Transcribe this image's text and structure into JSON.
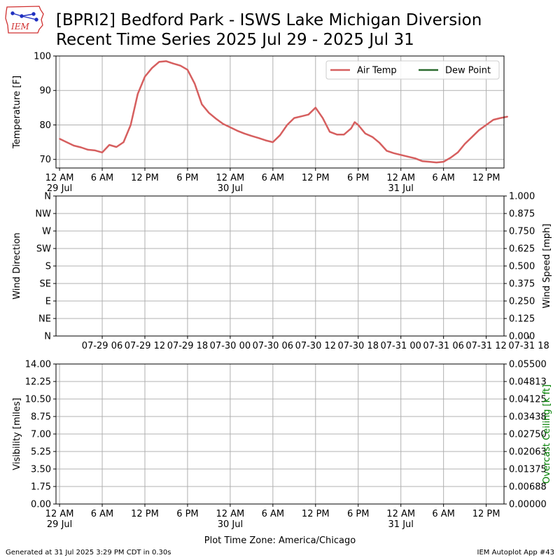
{
  "header": {
    "title_line1": "[BPRI2] Bedford Park - ISWS Lake Michigan Diversion",
    "title_line2": "Recent Time Series 2025 Jul 29 - 2025 Jul 31",
    "logo_text": "IEM"
  },
  "footer": {
    "generated": "Generated at 31 Jul 2025 3:29 PM CDT in 0.30s",
    "app": "IEM Autoplot App #43"
  },
  "colors": {
    "air_temp": "#d65f5f",
    "dew_point": "#2c6b2f",
    "ceiling_label": "#008000",
    "grid": "#b0b0b0",
    "logo_red": "#d03030",
    "logo_blue": "#2030c0"
  },
  "chart_data": [
    {
      "id": "temperature",
      "type": "line",
      "ylabel": "Temperature [F]",
      "xlabel": "",
      "ylim": [
        67.5,
        100
      ],
      "yticks": [
        70,
        80,
        90,
        100
      ],
      "xlim_hours_from_jul29_midnight": [
        -0.5,
        62.5
      ],
      "xtick_hours_from_jul29_midnight": [
        0,
        6,
        12,
        18,
        24,
        30,
        36,
        42,
        48,
        54,
        60
      ],
      "xtick_labels": [
        "12 AM",
        "6 AM",
        "12 PM",
        "6 PM",
        "12 AM",
        "6 AM",
        "12 PM",
        "6 PM",
        "12 AM",
        "6 AM",
        "12 PM"
      ],
      "xtick_date_labels": [
        "29 Jul",
        "",
        "",
        "",
        "30 Jul",
        "",
        "",
        "",
        "31 Jul",
        "",
        ""
      ],
      "grid": true,
      "legend": {
        "placement": "top-right",
        "entries": [
          "Air Temp",
          "Dew Point"
        ]
      },
      "series": [
        {
          "name": "Air Temp",
          "x": [
            "2025-07-29 00:00",
            "2025-07-29 01:00",
            "2025-07-29 02:00",
            "2025-07-29 03:00",
            "2025-07-29 04:00",
            "2025-07-29 05:00",
            "2025-07-29 06:00",
            "2025-07-29 07:00",
            "2025-07-29 08:00",
            "2025-07-29 09:00",
            "2025-07-29 10:00",
            "2025-07-29 11:00",
            "2025-07-29 12:00",
            "2025-07-29 13:00",
            "2025-07-29 14:00",
            "2025-07-29 15:00",
            "2025-07-29 16:00",
            "2025-07-29 17:00",
            "2025-07-29 18:00",
            "2025-07-29 19:00",
            "2025-07-29 20:00",
            "2025-07-29 21:00",
            "2025-07-29 22:00",
            "2025-07-29 23:00",
            "2025-07-30 00:00",
            "2025-07-30 01:00",
            "2025-07-30 02:00",
            "2025-07-30 03:00",
            "2025-07-30 04:00",
            "2025-07-30 05:00",
            "2025-07-30 06:00",
            "2025-07-30 07:00",
            "2025-07-30 08:00",
            "2025-07-30 09:00",
            "2025-07-30 10:00",
            "2025-07-30 11:00",
            "2025-07-30 12:00",
            "2025-07-30 13:00",
            "2025-07-30 14:00",
            "2025-07-30 15:00",
            "2025-07-30 16:00",
            "2025-07-30 17:00",
            "2025-07-30 17:30",
            "2025-07-30 18:00",
            "2025-07-30 19:00",
            "2025-07-30 20:00",
            "2025-07-30 21:00",
            "2025-07-30 22:00",
            "2025-07-30 23:00",
            "2025-07-31 00:00",
            "2025-07-31 01:00",
            "2025-07-31 02:00",
            "2025-07-31 03:00",
            "2025-07-31 04:00",
            "2025-07-31 05:00",
            "2025-07-31 06:00",
            "2025-07-31 07:00",
            "2025-07-31 08:00",
            "2025-07-31 09:00",
            "2025-07-31 10:00",
            "2025-07-31 11:00",
            "2025-07-31 12:00",
            "2025-07-31 13:00",
            "2025-07-31 14:00",
            "2025-07-31 15:00"
          ],
          "y": [
            76.0,
            75.0,
            74.0,
            73.5,
            72.8,
            72.6,
            72.0,
            74.2,
            73.6,
            75.0,
            80.0,
            89.0,
            94.0,
            96.5,
            98.3,
            98.5,
            97.8,
            97.2,
            96.0,
            92.0,
            86.0,
            83.5,
            81.8,
            80.3,
            79.3,
            78.3,
            77.5,
            76.8,
            76.2,
            75.5,
            75.0,
            77.0,
            80.0,
            82.0,
            82.5,
            83.0,
            85.0,
            82.0,
            78.0,
            77.2,
            77.2,
            79.0,
            80.8,
            80.0,
            77.5,
            76.5,
            74.8,
            72.5,
            71.8,
            71.3,
            70.8,
            70.3,
            69.5,
            69.3,
            69.1,
            69.3,
            70.5,
            72.0,
            74.5,
            76.5,
            78.5,
            80.0,
            81.5,
            82.0,
            82.4
          ]
        },
        {
          "name": "Dew Point",
          "x": [],
          "y": []
        }
      ]
    },
    {
      "id": "wind",
      "type": "scatter",
      "ylabel": "Wind Direction",
      "ylabel_right": "Wind Speed [mph]",
      "xlabel": "",
      "ylim": [
        0,
        360
      ],
      "yticks": [
        0,
        45,
        90,
        135,
        180,
        225,
        270,
        315,
        360
      ],
      "ytick_labels": [
        "N",
        "NE",
        "E",
        "SE",
        "S",
        "SW",
        "W",
        "NW",
        "N"
      ],
      "ylim_right": [
        0,
        1
      ],
      "yticks_right_labels": [
        "0.000",
        "0.125",
        "0.250",
        "0.375",
        "0.500",
        "0.625",
        "0.750",
        "0.875",
        "1.000"
      ],
      "xlim_hours_from_jul29_midnight": [
        -0.5,
        62.5
      ],
      "xtick_hours_from_jul29_midnight": [
        6,
        12,
        18,
        24,
        30,
        36,
        42,
        48,
        54,
        60,
        66
      ],
      "xtick_labels": [
        "07-29 06",
        "07-29 12",
        "07-29 18",
        "07-30 00",
        "07-30 06",
        "07-30 12",
        "07-30 18",
        "07-31 00",
        "07-31 06",
        "07-31 12",
        "07-31 18"
      ],
      "grid": true,
      "series": []
    },
    {
      "id": "visibility",
      "type": "line",
      "ylabel": "Visibility [miles]",
      "ylabel_right": "Overcast Ceiling [k ft]",
      "xlabel": "Plot Time Zone: America/Chicago",
      "ylim": [
        0,
        14
      ],
      "ytick_labels": [
        "0.00",
        "1.75",
        "3.50",
        "5.25",
        "7.00",
        "8.75",
        "10.50",
        "12.25",
        "14.00"
      ],
      "ylim_right": [
        0,
        0.055
      ],
      "yticks_right_labels": [
        "0.00000",
        "0.00688",
        "0.01375",
        "0.02063",
        "0.02750",
        "0.03438",
        "0.04125",
        "0.04813",
        "0.05500"
      ],
      "xlim_hours_from_jul29_midnight": [
        -0.5,
        62.5
      ],
      "xtick_hours_from_jul29_midnight": [
        0,
        6,
        12,
        18,
        24,
        30,
        36,
        42,
        48,
        54,
        60
      ],
      "xtick_labels": [
        "12 AM",
        "6 AM",
        "12 PM",
        "6 PM",
        "12 AM",
        "6 AM",
        "12 PM",
        "6 PM",
        "12 AM",
        "6 AM",
        "12 PM"
      ],
      "xtick_date_labels": [
        "29 Jul",
        "",
        "",
        "",
        "30 Jul",
        "",
        "",
        "",
        "31 Jul",
        "",
        ""
      ],
      "grid": true,
      "series": []
    }
  ]
}
